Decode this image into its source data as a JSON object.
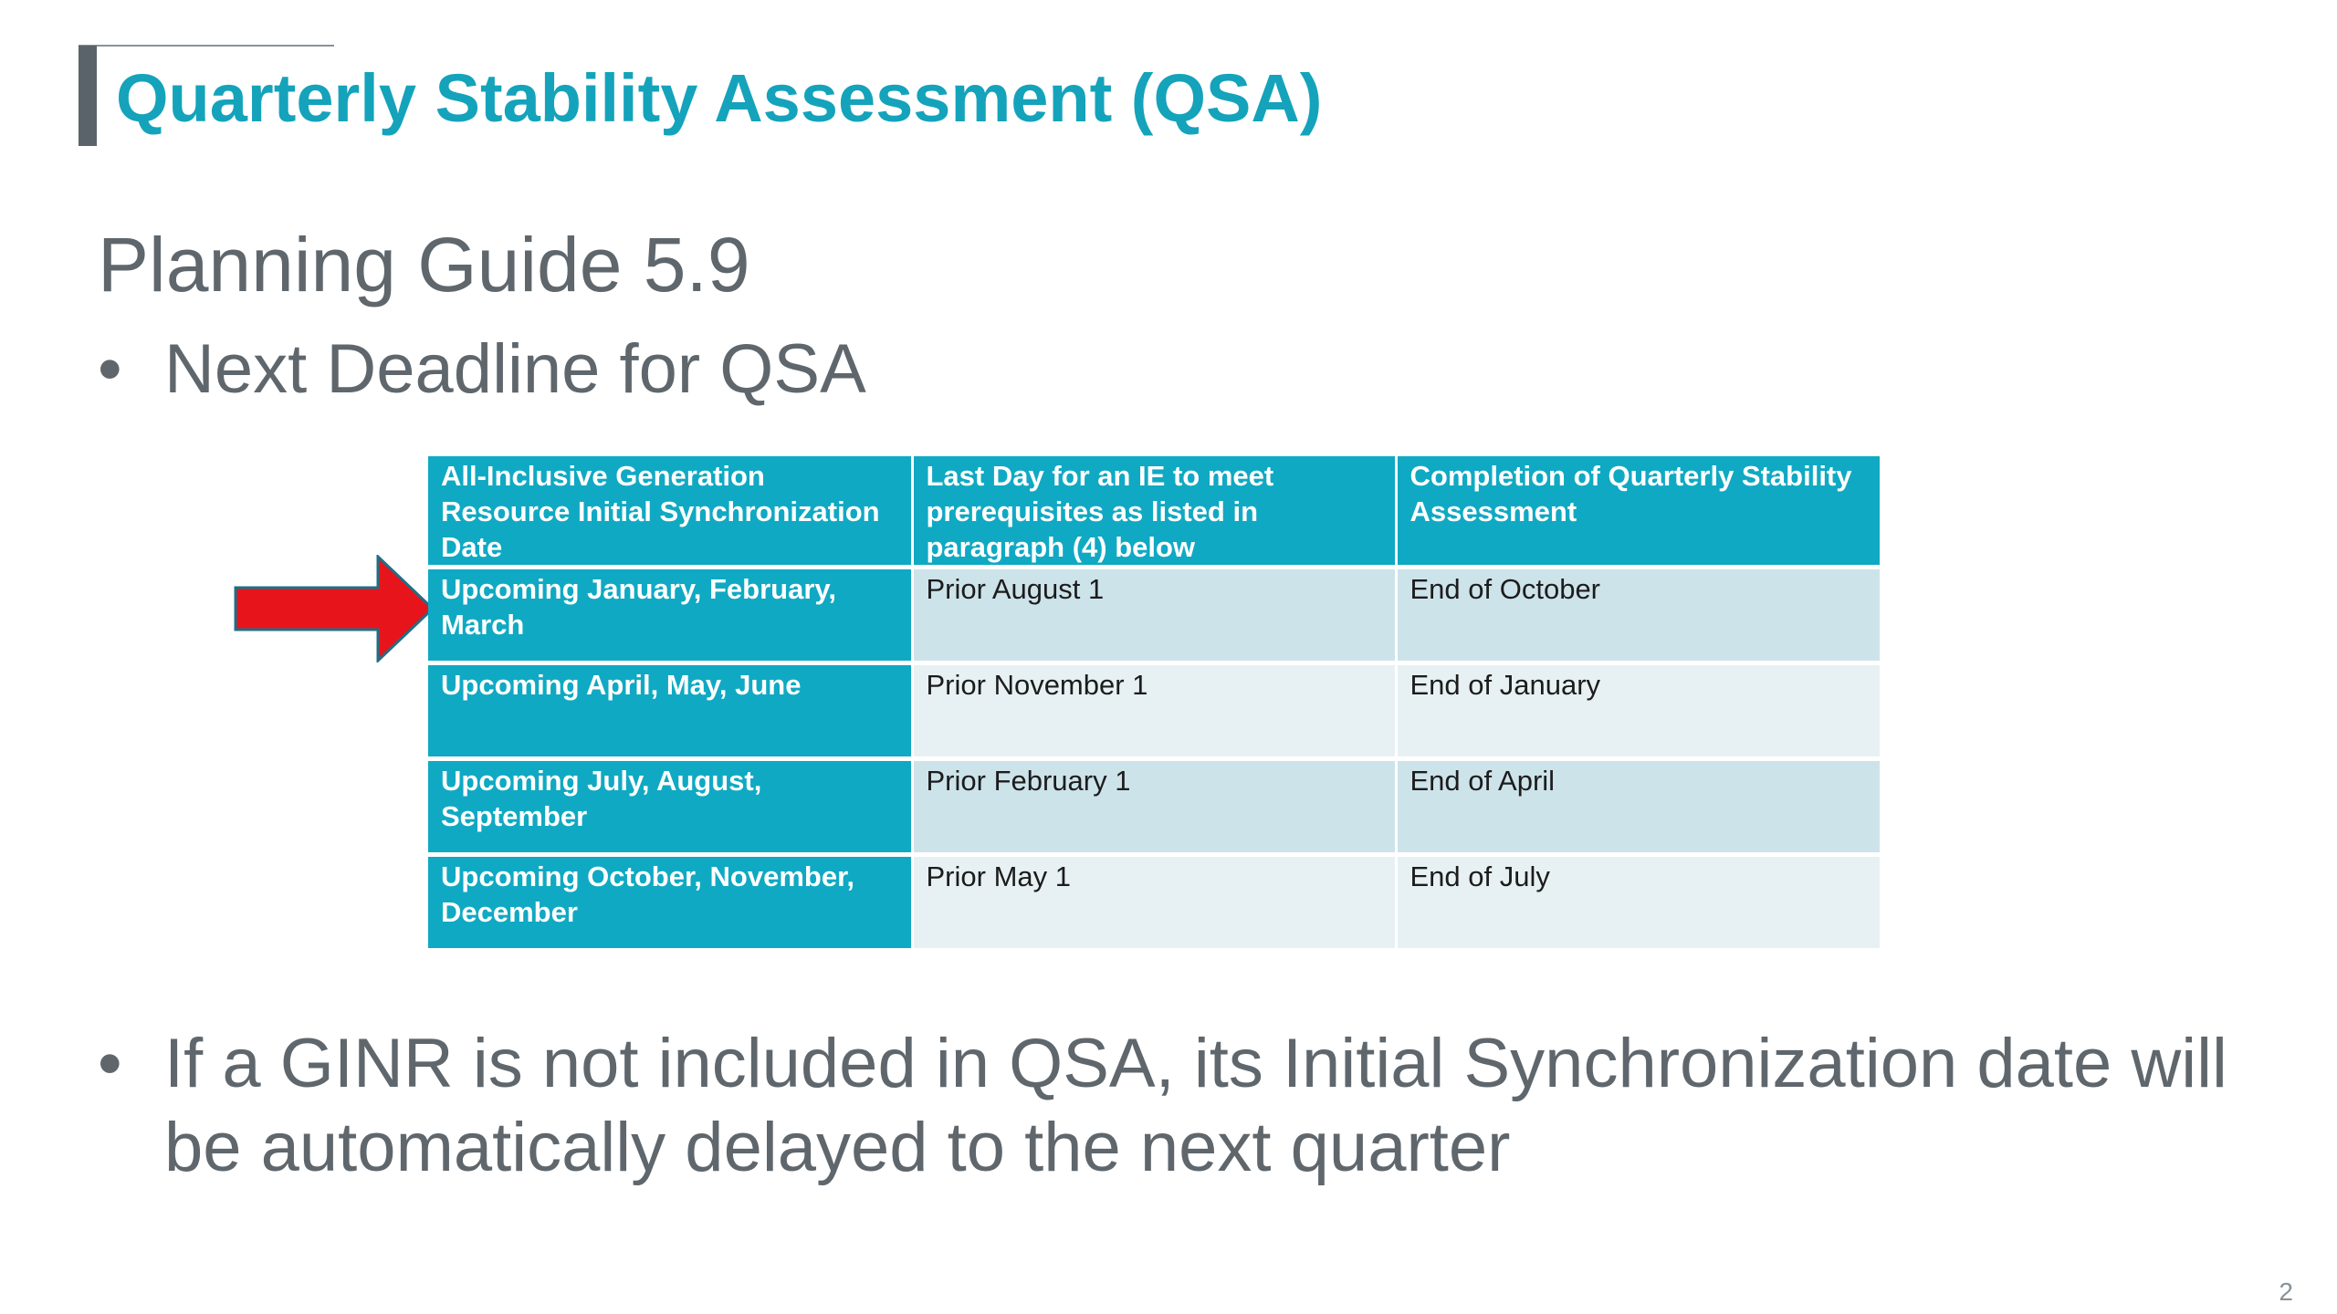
{
  "slide": {
    "title": "Quarterly Stability Assessment (QSA)",
    "subtitle": "Planning Guide 5.9",
    "bullet_glyph": "•",
    "bullets": [
      "Next Deadline for QSA",
      "If a GINR is not included in QSA, its Initial Synchronization date will be automatically delayed to the next quarter"
    ],
    "page_number": "2",
    "highlight_arrow_color": "#e8141b",
    "accent_color": "#14a3bb"
  },
  "table": {
    "headers": [
      "All-Inclusive Generation Resource Initial Synchronization Date",
      "Last Day for an IE to meet prerequisites as listed in paragraph (4) below",
      "Completion of Quarterly Stability Assessment"
    ],
    "rows": [
      [
        "Upcoming January, February, March",
        "Prior August 1",
        "End of October"
      ],
      [
        "Upcoming April, May, June",
        "Prior November 1",
        "End of January"
      ],
      [
        "Upcoming July, August, September",
        "Prior February 1",
        "End of April"
      ],
      [
        "Upcoming October, November, December",
        "Prior May 1",
        "End of July"
      ]
    ],
    "header_color": "#10a9c3",
    "row_colors": [
      "#cde3ea",
      "#e7f1f4"
    ]
  }
}
